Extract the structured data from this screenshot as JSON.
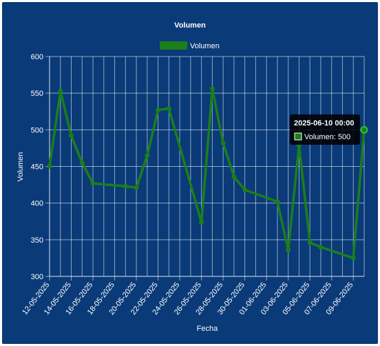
{
  "chart_data": {
    "type": "line",
    "title": "Volumen",
    "legend": {
      "label": "Volumen",
      "position": "top",
      "color": "#1a7f1a"
    },
    "xlabel": "Fecha",
    "ylabel": "Volumen",
    "ylim": [
      300,
      600
    ],
    "yticks": [
      300,
      350,
      400,
      450,
      500,
      550,
      600
    ],
    "x_start": "2025-05-12",
    "x_end": "2025-06-10",
    "xtick_labels": [
      "12-05-2025",
      "14-05-2025",
      "16-05-2025",
      "18-05-2025",
      "20-05-2025",
      "22-05-2025",
      "24-05-2025",
      "26-05-2025",
      "28-05-2025",
      "30-05-2025",
      "01-06-2025",
      "03-06-2025",
      "05-06-2025",
      "07-06-2025",
      "09-06-2025"
    ],
    "grid": true,
    "series": [
      {
        "name": "Volumen",
        "color": "#1a7f1a",
        "points": [
          {
            "x": "2025-05-12",
            "y": 450
          },
          {
            "x": "2025-05-13",
            "y": 553
          },
          {
            "x": "2025-05-14",
            "y": 492
          },
          {
            "x": "2025-05-15",
            "y": 455
          },
          {
            "x": "2025-05-16",
            "y": 427
          },
          {
            "x": "2025-05-19",
            "y": 423
          },
          {
            "x": "2025-05-20",
            "y": 421
          },
          {
            "x": "2025-05-21",
            "y": 465
          },
          {
            "x": "2025-05-22",
            "y": 527
          },
          {
            "x": "2025-05-23",
            "y": 529
          },
          {
            "x": "2025-05-26",
            "y": 374
          },
          {
            "x": "2025-05-27",
            "y": 556
          },
          {
            "x": "2025-05-28",
            "y": 482
          },
          {
            "x": "2025-05-29",
            "y": 436
          },
          {
            "x": "2025-05-30",
            "y": 418
          },
          {
            "x": "2025-06-02",
            "y": 402
          },
          {
            "x": "2025-06-03",
            "y": 336
          },
          {
            "x": "2025-06-04",
            "y": 479
          },
          {
            "x": "2025-06-05",
            "y": 346
          },
          {
            "x": "2025-06-06",
            "y": 340
          },
          {
            "x": "2025-06-09",
            "y": 325
          },
          {
            "x": "2025-06-10",
            "y": 500
          }
        ]
      }
    ],
    "tooltip": {
      "title": "2025-06-10 00:00",
      "label": "Volumen: 500"
    }
  }
}
